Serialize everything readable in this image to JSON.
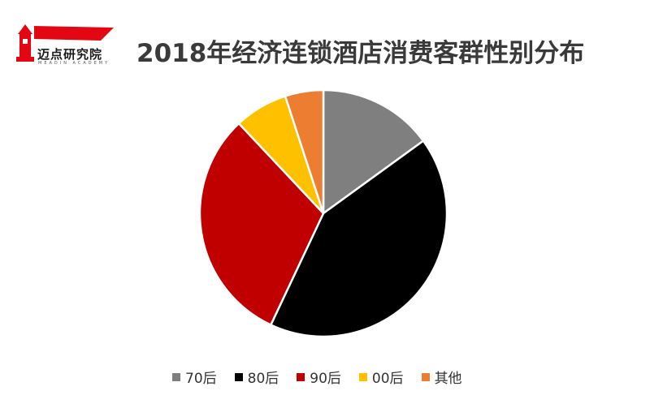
{
  "logo": {
    "text": "迈点研究院",
    "subtext": "MEADIN ACADEMY",
    "colors": {
      "red": "#e30613",
      "dark": "#1a1a1a"
    }
  },
  "chart_data": {
    "type": "pie",
    "title": "2018年经济连锁酒店消费客群性别分布",
    "categories": [
      "70后",
      "80后",
      "90后",
      "00后",
      "其他"
    ],
    "values": [
      15,
      42,
      31,
      7,
      5
    ],
    "colors": [
      "#7f7f7f",
      "#000000",
      "#c00000",
      "#ffc000",
      "#ed7d31"
    ],
    "start_angle_deg": 0,
    "direction": "clockwise",
    "legend_position": "bottom"
  }
}
